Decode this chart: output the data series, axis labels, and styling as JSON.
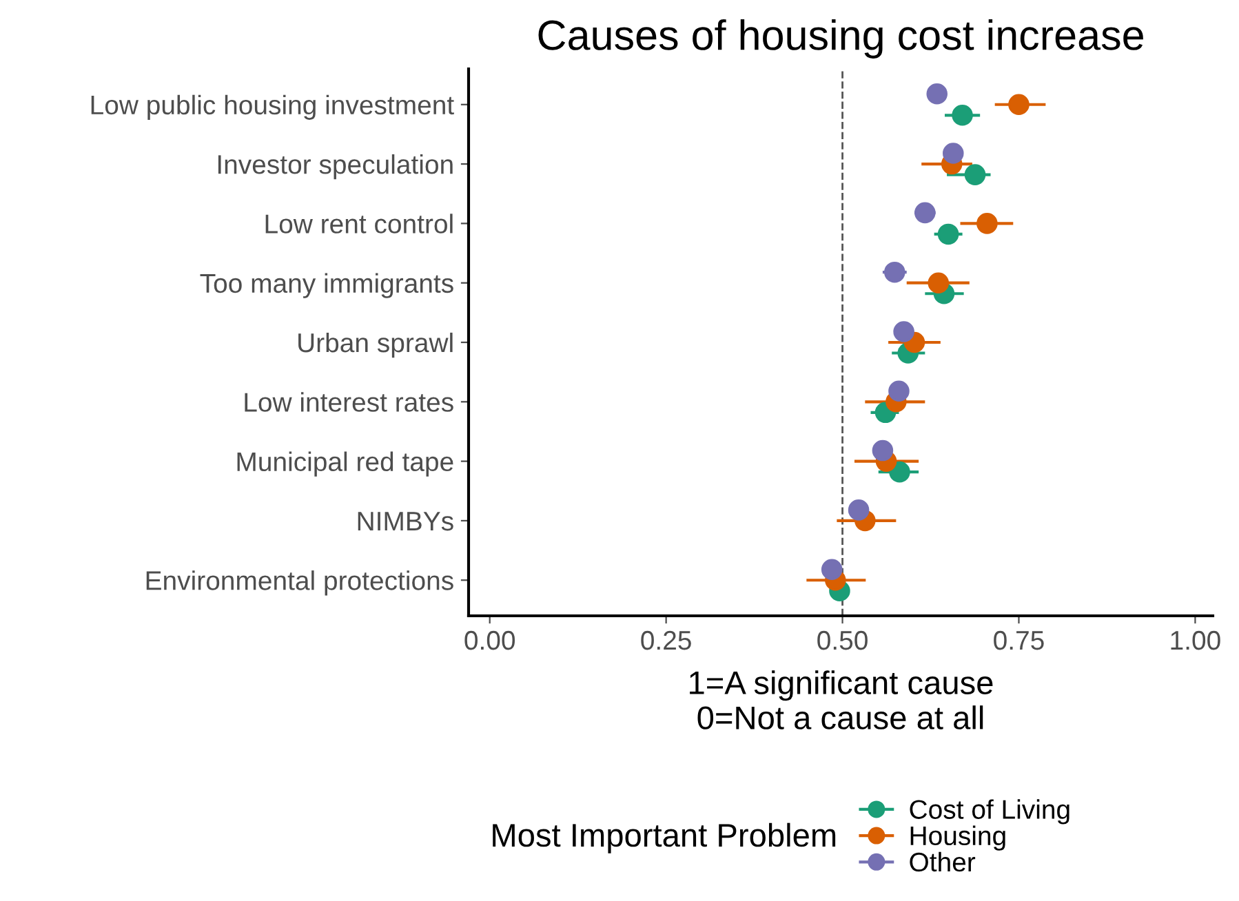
{
  "chart_data": {
    "type": "scatter",
    "orientation": "horizontal",
    "title": "Causes of housing cost increase",
    "xlabel": "1=A significant cause\n0=Not a cause at all",
    "legend_title": "Most Important Problem",
    "legend": "bottom",
    "grid": false,
    "marker": "circle",
    "categories": [
      "Low public housing investment",
      "Investor speculation",
      "Low rent control",
      "Too many immigrants",
      "Urban sprawl",
      "Low interest rates",
      "Municipal red tape",
      "NIMBYs",
      "Environmental protections"
    ],
    "xlim": [
      -0.03,
      1.025
    ],
    "xticks": [
      {
        "value": 0,
        "label": "0.00"
      },
      {
        "value": 0.25,
        "label": "0.25"
      },
      {
        "value": 0.5,
        "label": "0.50"
      },
      {
        "value": 0.75,
        "label": "0.75"
      },
      {
        "value": 1,
        "label": "1.00"
      }
    ],
    "ref_lines": [
      {
        "axis": "x",
        "value": 0.5,
        "color": "#555555",
        "line_style": "dashed"
      }
    ],
    "series": [
      {
        "name": "Cost of Living",
        "color": "#1b9e77",
        "values": [
          0.67,
          0.688,
          0.65,
          0.644,
          0.593,
          0.561,
          0.581,
          null,
          0.496
        ],
        "errors": [
          [
            0.645,
            0.695
          ],
          [
            0.648,
            0.71
          ],
          [
            0.63,
            0.67
          ],
          [
            0.617,
            0.672
          ],
          [
            0.57,
            0.617
          ],
          [
            0.54,
            0.58
          ],
          [
            0.551,
            0.608
          ],
          null,
          [
            0.488,
            0.504
          ]
        ]
      },
      {
        "name": "Housing",
        "color": "#d95f02",
        "values": [
          0.75,
          0.655,
          0.705,
          0.636,
          0.602,
          0.576,
          0.562,
          0.532,
          0.49
        ],
        "errors": [
          [
            0.716,
            0.788
          ],
          [
            0.612,
            0.684
          ],
          [
            0.667,
            0.742
          ],
          [
            0.591,
            0.68
          ],
          [
            0.565,
            0.639
          ],
          [
            0.532,
            0.617
          ],
          [
            0.517,
            0.608
          ],
          [
            0.492,
            0.576
          ],
          [
            0.449,
            0.533
          ]
        ]
      },
      {
        "name": "Other",
        "color": "#7570b3",
        "values": [
          0.634,
          0.657,
          0.617,
          0.574,
          0.587,
          0.58,
          0.557,
          0.523,
          0.485
        ],
        "errors": [
          [
            0.62,
            0.648
          ],
          [
            0.644,
            0.67
          ],
          [
            0.602,
            0.632
          ],
          [
            0.557,
            0.591
          ],
          [
            0.575,
            0.599
          ],
          [
            0.568,
            0.592
          ],
          [
            0.545,
            0.569
          ],
          [
            0.511,
            0.535
          ],
          [
            0.473,
            0.497
          ]
        ]
      }
    ]
  }
}
